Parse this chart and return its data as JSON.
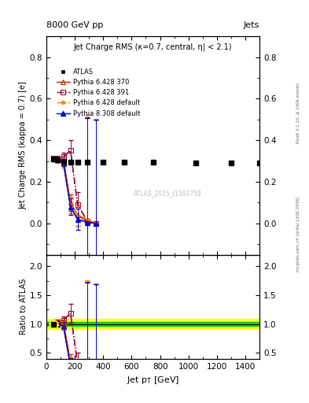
{
  "title_top": "8000 GeV pp",
  "title_top_right": "Jets",
  "plot_title": "Jet Charge RMS (κ=0.7, central, η| < 2.1)",
  "ylabel_main": "Jet Charge RMS (kappa = 0.7) [e]",
  "ylabel_ratio": "Ratio to ATLAS",
  "xlabel": "Jet p_T [GeV]",
  "watermark": "ATLAS_2015_I1393758",
  "rivet_label": "Rivet 3.1.10, ≥ 100k events",
  "mcplots_label": "mcplots.cern.ch [arXiv:1306.3436]",
  "atlas_x": [
    50,
    80,
    120,
    170,
    220,
    290,
    400,
    550,
    750,
    1050,
    1300,
    1500
  ],
  "atlas_y": [
    0.31,
    0.305,
    0.3,
    0.295,
    0.295,
    0.295,
    0.295,
    0.295,
    0.293,
    0.292,
    0.292,
    0.292
  ],
  "atlas_yerr": [
    0.005,
    0.004,
    0.004,
    0.004,
    0.004,
    0.004,
    0.004,
    0.004,
    0.004,
    0.004,
    0.004,
    0.004
  ],
  "py6_370_x": [
    50,
    80,
    120,
    170,
    220,
    290,
    350
  ],
  "py6_370_y": [
    0.31,
    0.305,
    0.305,
    0.1,
    0.04,
    0.01,
    0.0
  ],
  "py6_370_yerr": [
    0.005,
    0.008,
    0.015,
    0.04,
    0.05,
    0.5,
    0.5
  ],
  "py6_370_color": "#cc2200",
  "py6_391_x": [
    50,
    80,
    120,
    170,
    220,
    290,
    350
  ],
  "py6_391_y": [
    0.315,
    0.315,
    0.32,
    0.35,
    0.09,
    0.01,
    0.0
  ],
  "py6_391_yerr": [
    0.005,
    0.008,
    0.02,
    0.05,
    0.06,
    0.5,
    0.5
  ],
  "py6_391_color": "#990033",
  "py6_def_x": [
    50,
    80,
    120,
    170,
    220,
    290,
    350
  ],
  "py6_def_y": [
    0.31,
    0.3,
    0.285,
    0.09,
    0.04,
    0.02,
    0.0
  ],
  "py6_def_yerr": [
    0.005,
    0.008,
    0.015,
    0.04,
    0.05,
    0.5,
    0.5
  ],
  "py6_def_color": "#ff8800",
  "py8_def_x": [
    50,
    80,
    120,
    170,
    220,
    290,
    350
  ],
  "py8_def_y": [
    0.31,
    0.305,
    0.29,
    0.08,
    0.02,
    0.005,
    0.0
  ],
  "py8_def_yerr": [
    0.005,
    0.008,
    0.015,
    0.04,
    0.05,
    0.5,
    0.5
  ],
  "py8_def_color": "#0000cc",
  "xlim": [
    0,
    1500
  ],
  "ylim_main": [
    -0.15,
    0.9
  ],
  "ylim_ratio": [
    0.4,
    2.2
  ],
  "yticks_main": [
    0.0,
    0.2,
    0.4,
    0.6,
    0.8
  ],
  "yticks_ratio": [
    0.5,
    1.0,
    1.5,
    2.0
  ],
  "green_band_lo": 0.965,
  "green_band_hi": 1.035,
  "yellow_band_lo": 0.91,
  "yellow_band_hi": 1.09
}
